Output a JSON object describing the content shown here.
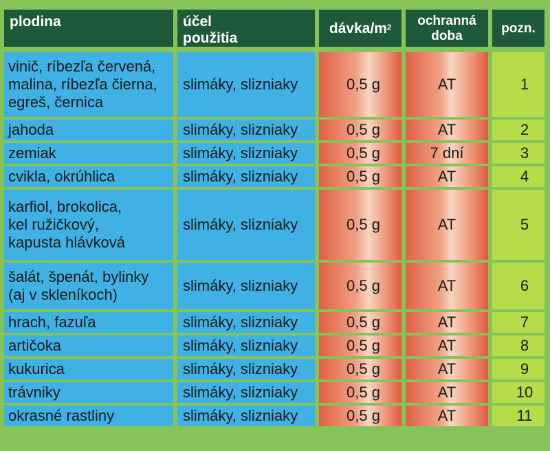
{
  "headers": {
    "crop": "plodina",
    "use_line1": "účel",
    "use_line2": "použitia",
    "dose": "dávka/m",
    "dose_sup": "2",
    "period_line1": "ochranná",
    "period_line2": "doba",
    "note": "pozn."
  },
  "rows": [
    {
      "crop_lines": [
        "vinič, ríbezľa červená,",
        "malina, ríbezľa čierna,",
        "egreš, černica"
      ],
      "use": "slimáky, slizniaky",
      "dose": "0,5 g",
      "period": "AT",
      "note": "1"
    },
    {
      "crop_lines": [
        "jahoda"
      ],
      "use": "slimáky, slizniaky",
      "dose": "0,5 g",
      "period": "AT",
      "note": "2"
    },
    {
      "crop_lines": [
        "zemiak"
      ],
      "use": "slimáky, slizniaky",
      "dose": "0,5 g",
      "period": "7 dní",
      "note": "3"
    },
    {
      "crop_lines": [
        "cvikla, okrúhlica"
      ],
      "use": "slimáky, slizniaky",
      "dose": "0,5 g",
      "period": "AT",
      "note": "4"
    },
    {
      "crop_lines": [
        "karfiol, brokolica,",
        "kel ružičkový,",
        "kapusta hlávková"
      ],
      "use": "slimáky, slizniaky",
      "dose": "0,5 g",
      "period": "AT",
      "note": "5"
    },
    {
      "crop_lines": [
        "šalát, špenát, bylinky",
        "(aj v skleníkoch)"
      ],
      "use": "slimáky, slizniaky",
      "dose": "0,5 g",
      "period": "AT",
      "note": "6"
    },
    {
      "crop_lines": [
        "hrach, fazuľa"
      ],
      "use": "slimáky, slizniaky",
      "dose": "0,5 g",
      "period": "AT",
      "note": "7"
    },
    {
      "crop_lines": [
        "artičoka"
      ],
      "use": "slimáky, slizniaky",
      "dose": "0,5 g",
      "period": "AT",
      "note": "8"
    },
    {
      "crop_lines": [
        "kukurica"
      ],
      "use": "slimáky, slizniaky",
      "dose": "0,5 g",
      "period": "AT",
      "note": "9"
    },
    {
      "crop_lines": [
        "trávniky"
      ],
      "use": "slimáky, slizniaky",
      "dose": "0,5 g",
      "period": "AT",
      "note": "10"
    },
    {
      "crop_lines": [
        "okrasné rastliny"
      ],
      "use": "slimáky, slizniaky",
      "dose": "0,5 g",
      "period": "AT",
      "note": "11"
    }
  ]
}
